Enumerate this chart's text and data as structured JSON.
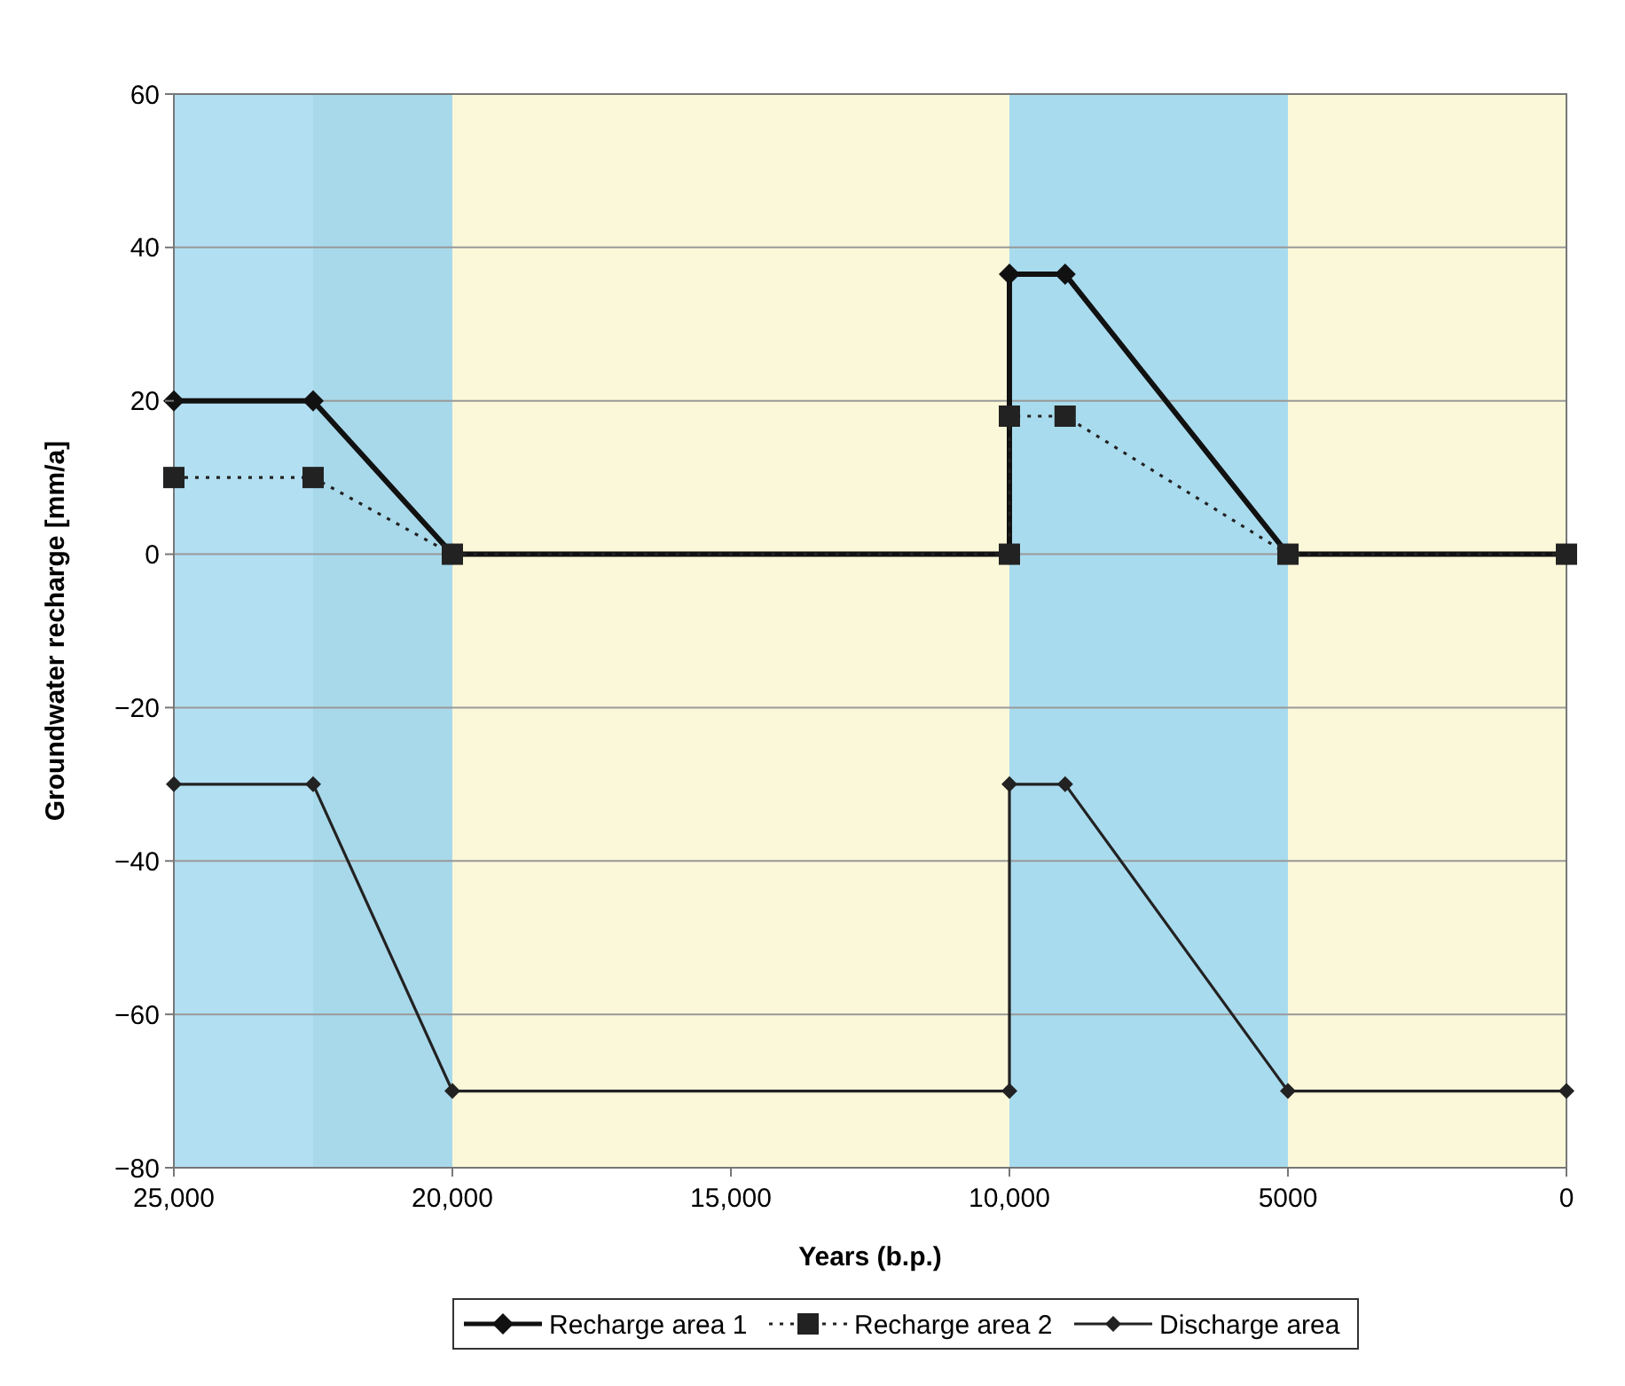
{
  "chart_data": {
    "type": "line",
    "xlabel": "Years (b.p.)",
    "ylabel": "Groundwater recharge [mm/a]",
    "xlim": [
      25000,
      0
    ],
    "xticks": [
      {
        "value": 25000,
        "label": "25,000"
      },
      {
        "value": 20000,
        "label": "20,000"
      },
      {
        "value": 15000,
        "label": "15,000"
      },
      {
        "value": 10000,
        "label": "10,000"
      },
      5000,
      0
    ],
    "ylim": [
      -80,
      60
    ],
    "yticks": [
      {
        "value": -80,
        "label": "−80"
      },
      {
        "value": -60,
        "label": "−60"
      },
      {
        "value": -40,
        "label": "−40"
      },
      {
        "value": -20,
        "label": "−20"
      },
      0,
      20,
      40,
      60
    ],
    "grid": "y",
    "legend": "bottom",
    "bands": [
      {
        "axis": "x",
        "from": 25000,
        "to": 22500,
        "color": "#b2dff2"
      },
      {
        "axis": "x",
        "from": 22500,
        "to": 20000,
        "color": "#a8d9ea"
      },
      {
        "axis": "x",
        "from": 20000,
        "to": 10000,
        "color": "#fbf8d9"
      },
      {
        "axis": "x",
        "from": 10000,
        "to": 5000,
        "color": "#a9dbee"
      },
      {
        "axis": "x",
        "from": 5000,
        "to": 0,
        "color": "#fbf8d9"
      }
    ],
    "series": [
      {
        "name": "Recharge area 1",
        "color": "#111111",
        "marker": "diamond",
        "line_style": "solid",
        "x": [
          25000,
          22500,
          20000,
          10000,
          10000,
          9000,
          5000,
          0
        ],
        "values": [
          20,
          20,
          0,
          0,
          36.5,
          36.5,
          0,
          0
        ]
      },
      {
        "name": "Recharge area 2",
        "color": "#222222",
        "marker": "square",
        "line_style": "dotted",
        "x": [
          25000,
          22500,
          20000,
          10000,
          10000,
          9000,
          5000,
          0
        ],
        "values": [
          10,
          10,
          0,
          0,
          18,
          18,
          0,
          0
        ]
      },
      {
        "name": "Discharge area",
        "color": "#222222",
        "marker": "diamond",
        "line_style": "solid",
        "x": [
          25000,
          22500,
          20000,
          10000,
          10000,
          9000,
          5000,
          0
        ],
        "values": [
          -30,
          -30,
          -70,
          -70,
          -30,
          -30,
          -70,
          -70
        ]
      }
    ]
  }
}
